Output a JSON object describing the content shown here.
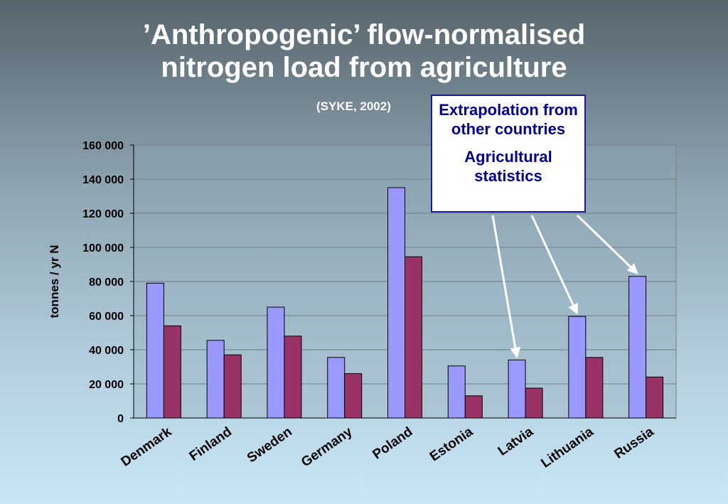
{
  "slide": {
    "title_line1": "’Anthropogenic’ flow-normalised",
    "title_line2": "nitrogen load from agriculture",
    "subtitle": "(SYKE, 2002)"
  },
  "callout": {
    "line1": "Extrapolation from other countries",
    "line2": "Agricultural statistics"
  },
  "colors": {
    "series_a": "#9999ff",
    "series_b": "#993366",
    "plot_bg": "#8fa5b4",
    "arrow": "#ffffff"
  },
  "chart_data": {
    "type": "bar",
    "ylabel": "tonnes / yr N",
    "ylim": [
      0,
      160000
    ],
    "yticks": [
      0,
      20000,
      40000,
      60000,
      80000,
      100000,
      120000,
      140000,
      160000
    ],
    "ytick_labels": [
      "0",
      "20 000",
      "40 000",
      "60 000",
      "80 000",
      "100 000",
      "120 000",
      "140 000",
      "160 000"
    ],
    "categories": [
      "Denmark",
      "Finland",
      "Sweden",
      "Germany",
      "Poland",
      "Estonia",
      "Latvia",
      "Lithuania",
      "Russia"
    ],
    "series": [
      {
        "values": [
          79000,
          45500,
          65000,
          35500,
          135000,
          30500,
          34000,
          59500,
          83000
        ]
      },
      {
        "values": [
          54000,
          37000,
          48000,
          26000,
          94500,
          13000,
          17500,
          35500,
          24000
        ]
      }
    ],
    "grid": true,
    "arrows_to": [
      "Latvia",
      "Lithuania",
      "Russia"
    ]
  }
}
